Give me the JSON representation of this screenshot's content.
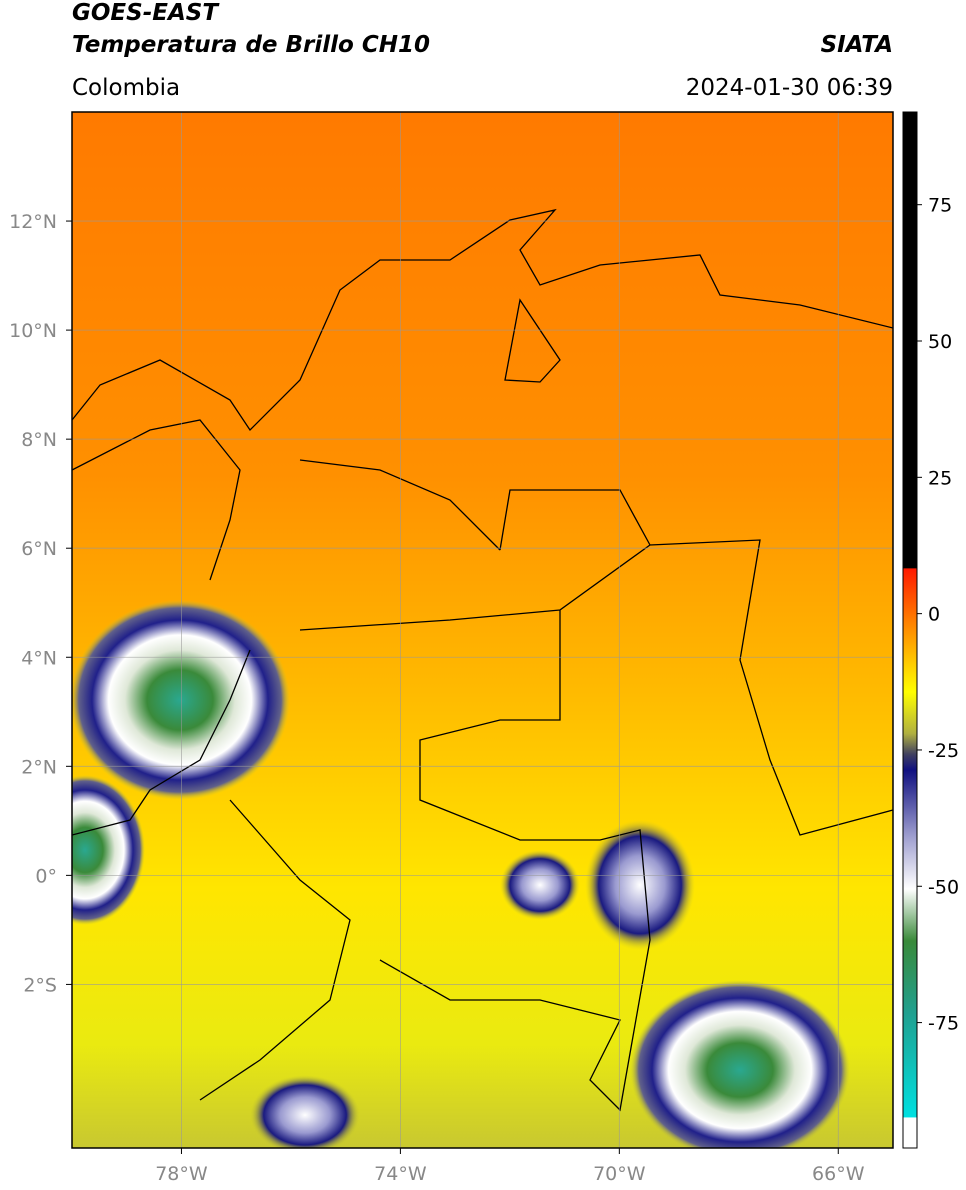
{
  "header": {
    "title": "GOES-EAST",
    "subtitle": "Temperatura de Brillo CH10",
    "source": "SIATA",
    "region": "Colombia",
    "datetime": "2024-01-30 06:39"
  },
  "map": {
    "xlim": [
      -80,
      -65
    ],
    "ylim": [
      -5,
      14
    ],
    "xticks": [
      {
        "value": -78,
        "label": "78°W"
      },
      {
        "value": -74,
        "label": "74°W"
      },
      {
        "value": -70,
        "label": "70°W"
      },
      {
        "value": -66,
        "label": "66°W"
      }
    ],
    "yticks": [
      {
        "value": 12,
        "label": "12°N"
      },
      {
        "value": 10,
        "label": "10°N"
      },
      {
        "value": 8,
        "label": "8°N"
      },
      {
        "value": 6,
        "label": "6°N"
      },
      {
        "value": 4,
        "label": "4°N"
      },
      {
        "value": 2,
        "label": "2°N"
      },
      {
        "value": 0,
        "label": "0°"
      },
      {
        "value": -2,
        "label": "2°S"
      }
    ],
    "grid": true
  },
  "colorbar": {
    "ylim": [
      -98,
      92
    ],
    "yticks": [
      75,
      50,
      25,
      0,
      -25,
      -50,
      -75
    ]
  }
}
